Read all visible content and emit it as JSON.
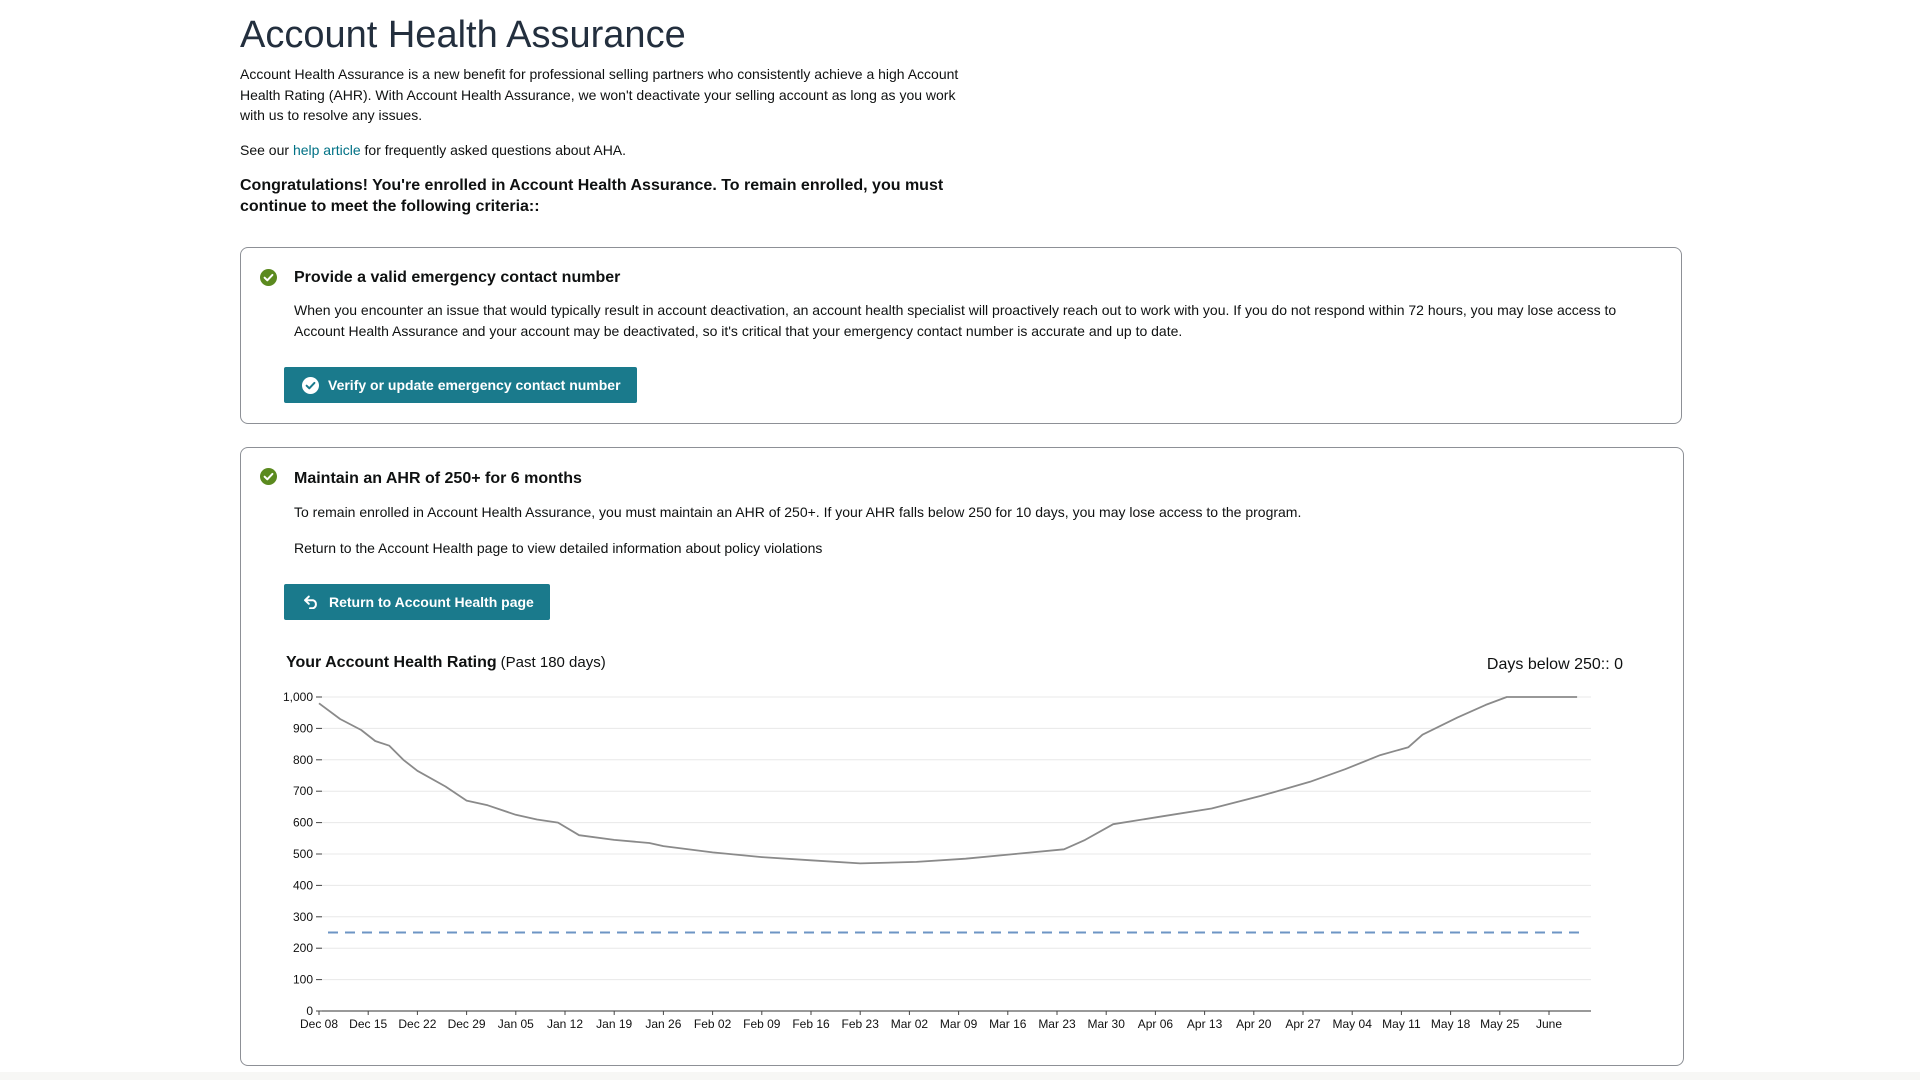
{
  "page": {
    "title": "Account Health Assurance",
    "intro": "Account Health Assurance is a new benefit for professional selling partners who consistently achieve a high Account Health Rating (AHR). With Account Health Assurance, we won't deactivate your selling account as long as you work with us to resolve any issues.",
    "help_prefix": "See our ",
    "help_link": "help article",
    "help_suffix": " for frequently asked questions about AHA.",
    "congrats": "Congratulations! You're enrolled in Account Health Assurance. To remain enrolled, you must continue to meet the following criteria::"
  },
  "criteria": [
    {
      "title": "Provide a valid emergency contact number",
      "text": "When you encounter an issue that would typically result in account deactivation, an account health specialist will proactively reach out to work with you. If you do not respond within 72 hours, you may lose access to Account Health Assurance and your account may be deactivated, so it's critical that your emergency contact number is accurate and up to date.",
      "button": "Verify or update emergency contact number",
      "status": "met"
    },
    {
      "title": "Maintain an AHR of 250+ for 6 months",
      "text": "To remain enrolled in Account Health Assurance, you must maintain an AHR of 250+. If your AHR falls below 250 for 10 days, you may lose access to the program.",
      "text2": "Return to the Account Health page to view detailed information about policy violations",
      "button": "Return to Account Health page",
      "status": "met"
    }
  ],
  "colors": {
    "accent_button": "#1a7a8c",
    "check_green": "#5b8a1f",
    "link": "#007185",
    "line": "#8a8a8a",
    "threshold": "#6d95c4"
  },
  "icons": [
    "check-circle-icon",
    "undo-arrow-icon"
  ],
  "chart_data": {
    "type": "line",
    "title": "Your Account Health Rating",
    "subtitle": "(Past 180 days)",
    "summary_label": "Days below 250:: 0",
    "xlabel": "",
    "ylabel": "",
    "ylim": [
      0,
      1000
    ],
    "y_ticks": [
      "0",
      "100",
      "200",
      "300",
      "400",
      "500",
      "600",
      "700",
      "800",
      "900",
      "1,000"
    ],
    "x_ticks": [
      "Dec 08",
      "Dec 15",
      "Dec 22",
      "Dec 29",
      "Jan 05",
      "Jan 12",
      "Jan 19",
      "Jan 26",
      "Feb 02",
      "Feb 09",
      "Feb 16",
      "Feb 23",
      "Mar 02",
      "Mar 09",
      "Mar 16",
      "Mar 23",
      "Mar 30",
      "Apr 06",
      "Apr 13",
      "Apr 20",
      "Apr 27",
      "May 04",
      "May 11",
      "May 18",
      "May 25",
      "June"
    ],
    "grid": true,
    "threshold": 250,
    "series": [
      {
        "values": [
          {
            "x": "Dec 08",
            "y": 980
          },
          {
            "x": "Dec 11",
            "y": 930
          },
          {
            "x": "Dec 14",
            "y": 895
          },
          {
            "x": "Dec 16",
            "y": 860
          },
          {
            "x": "Dec 18",
            "y": 845
          },
          {
            "x": "Dec 20",
            "y": 800
          },
          {
            "x": "Dec 22",
            "y": 765
          },
          {
            "x": "Dec 26",
            "y": 715
          },
          {
            "x": "Dec 29",
            "y": 670
          },
          {
            "x": "Jan 01",
            "y": 655
          },
          {
            "x": "Jan 05",
            "y": 625
          },
          {
            "x": "Jan 08",
            "y": 610
          },
          {
            "x": "Jan 11",
            "y": 600
          },
          {
            "x": "Jan 14",
            "y": 560
          },
          {
            "x": "Jan 19",
            "y": 545
          },
          {
            "x": "Jan 24",
            "y": 535
          },
          {
            "x": "Jan 26",
            "y": 525
          },
          {
            "x": "Feb 02",
            "y": 505
          },
          {
            "x": "Feb 09",
            "y": 490
          },
          {
            "x": "Feb 16",
            "y": 480
          },
          {
            "x": "Feb 23",
            "y": 470
          },
          {
            "x": "Mar 02",
            "y": 475
          },
          {
            "x": "Mar 09",
            "y": 485
          },
          {
            "x": "Mar 16",
            "y": 500
          },
          {
            "x": "Mar 23",
            "y": 515
          },
          {
            "x": "Mar 26",
            "y": 545
          },
          {
            "x": "Mar 30",
            "y": 595
          },
          {
            "x": "Apr 06",
            "y": 620
          },
          {
            "x": "Apr 13",
            "y": 645
          },
          {
            "x": "Apr 20",
            "y": 685
          },
          {
            "x": "Apr 27",
            "y": 730
          },
          {
            "x": "May 02",
            "y": 770
          },
          {
            "x": "May 07",
            "y": 815
          },
          {
            "x": "May 11",
            "y": 840
          },
          {
            "x": "May 13",
            "y": 880
          },
          {
            "x": "May 18",
            "y": 935
          },
          {
            "x": "May 22",
            "y": 975
          },
          {
            "x": "May 25",
            "y": 1000
          },
          {
            "x": "Jun 04",
            "y": 1000
          }
        ]
      }
    ]
  }
}
